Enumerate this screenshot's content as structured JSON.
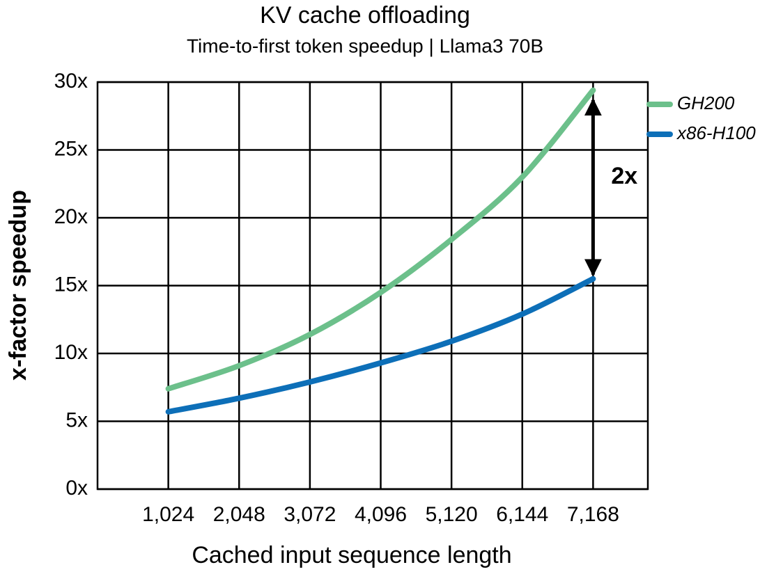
{
  "chart_data": {
    "type": "line",
    "title": "KV cache offloading",
    "subtitle": "Time-to-first token speedup | Llama3 70B",
    "x_label": "Cached input sequence length",
    "y_label": "x-factor speedup",
    "x": [
      1024,
      2048,
      3072,
      4096,
      5120,
      6144,
      7168
    ],
    "series": [
      {
        "name": "GH200",
        "color": "#6cc08b",
        "values": [
          7.4,
          9.1,
          11.4,
          14.5,
          18.4,
          23.0,
          29.4
        ]
      },
      {
        "name": "x86-H100",
        "color": "#0d6fb8",
        "values": [
          5.7,
          6.7,
          7.9,
          9.3,
          10.9,
          12.9,
          15.5
        ]
      }
    ],
    "annotation": "2x",
    "xlim": [
      0,
      7960
    ],
    "xticks": [
      {
        "value": 1024,
        "label": "1,024"
      },
      {
        "value": 2048,
        "label": "2,048"
      },
      {
        "value": 3072,
        "label": "3,072"
      },
      {
        "value": 4096,
        "label": "4,096"
      },
      {
        "value": 5120,
        "label": "5,120"
      },
      {
        "value": 6144,
        "label": "6,144"
      },
      {
        "value": 7168,
        "label": "7,168"
      }
    ],
    "ylim": [
      0,
      30
    ],
    "yticks": [
      {
        "value": 0,
        "label": "0x"
      },
      {
        "value": 5,
        "label": "5x"
      },
      {
        "value": 10,
        "label": "10x"
      },
      {
        "value": 15,
        "label": "15x"
      },
      {
        "value": 20,
        "label": "20x"
      },
      {
        "value": 25,
        "label": "25x"
      },
      {
        "value": 30,
        "label": "30x"
      }
    ],
    "grid": true,
    "legend": "top-right"
  }
}
